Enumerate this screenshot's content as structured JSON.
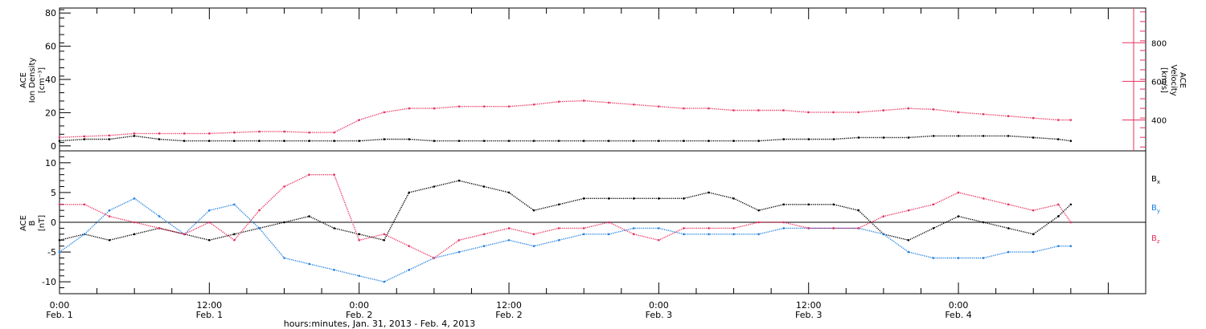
{
  "chart_data": [
    {
      "type": "scatter",
      "panel": "top",
      "ylabel_left": [
        "ACE",
        "Ion Density",
        "[cm⁻³]"
      ],
      "ylabel_right": [
        "ACE",
        "Velocity",
        "[km/s]"
      ],
      "ylim_left": [
        -3,
        83
      ],
      "ylim_right": [
        240,
        980
      ],
      "yticks_left": [
        0,
        20,
        40,
        60,
        80
      ],
      "yticks_right": [
        400,
        600,
        800
      ],
      "series": [
        {
          "name": "Ion Density",
          "color": "#000000",
          "x": [
            0,
            2,
            4,
            6,
            8,
            10,
            12,
            14,
            16,
            18,
            20,
            22,
            24,
            26,
            28,
            30,
            32,
            34,
            36,
            38,
            40,
            42,
            44,
            46,
            48,
            50,
            52,
            54,
            56,
            58,
            60,
            62,
            64,
            66,
            68,
            70,
            72,
            74,
            76,
            78,
            80,
            81
          ],
          "y": [
            3,
            4,
            4,
            6,
            4,
            3,
            3,
            3,
            3,
            3,
            3,
            3,
            3,
            4,
            4,
            3,
            3,
            3,
            3,
            3,
            3,
            3,
            3,
            3,
            3,
            3,
            3,
            3,
            3,
            4,
            4,
            4,
            5,
            5,
            5,
            6,
            6,
            6,
            6,
            5,
            4,
            3
          ]
        },
        {
          "name": "Velocity",
          "color": "#e8305f",
          "x": [
            0,
            2,
            4,
            6,
            8,
            10,
            12,
            14,
            16,
            18,
            20,
            22,
            24,
            26,
            28,
            30,
            32,
            34,
            36,
            38,
            40,
            42,
            44,
            46,
            48,
            50,
            52,
            54,
            56,
            58,
            60,
            62,
            64,
            66,
            68,
            70,
            72,
            74,
            76,
            78,
            80,
            81
          ],
          "y": [
            310,
            315,
            320,
            330,
            330,
            330,
            330,
            335,
            340,
            340,
            335,
            335,
            400,
            440,
            460,
            460,
            470,
            470,
            470,
            480,
            495,
            500,
            490,
            480,
            470,
            460,
            460,
            450,
            450,
            450,
            440,
            440,
            440,
            450,
            460,
            455,
            440,
            430,
            420,
            410,
            400,
            400
          ]
        }
      ]
    },
    {
      "type": "scatter",
      "panel": "bottom",
      "ylabel_left": [
        "ACE",
        "B",
        "[nT]"
      ],
      "ylim": [
        -12,
        12
      ],
      "yticks": [
        -10,
        -5,
        0,
        5,
        10
      ],
      "legend": [
        "Bₓ",
        "By",
        "B_z"
      ],
      "legend_placement": "right",
      "series": [
        {
          "name": "Bx",
          "color": "#000000",
          "x": [
            0,
            2,
            4,
            6,
            8,
            10,
            12,
            14,
            16,
            18,
            20,
            22,
            24,
            26,
            28,
            30,
            32,
            34,
            36,
            38,
            40,
            42,
            44,
            46,
            48,
            50,
            52,
            54,
            56,
            58,
            60,
            62,
            64,
            66,
            68,
            70,
            72,
            74,
            76,
            78,
            80,
            81
          ],
          "y": [
            -3,
            -2,
            -3,
            -2,
            -1,
            -2,
            -3,
            -2,
            -1,
            0,
            1,
            -1,
            -2,
            -3,
            5,
            6,
            7,
            6,
            5,
            2,
            3,
            4,
            4,
            4,
            4,
            4,
            5,
            4,
            2,
            3,
            3,
            3,
            2,
            -2,
            -3,
            -1,
            1,
            0,
            -1,
            -2,
            1,
            3
          ]
        },
        {
          "name": "By",
          "color": "#1e7fe0",
          "x": [
            0,
            2,
            4,
            6,
            8,
            10,
            12,
            14,
            16,
            18,
            20,
            22,
            24,
            26,
            28,
            30,
            32,
            34,
            36,
            38,
            40,
            42,
            44,
            46,
            48,
            50,
            52,
            54,
            56,
            58,
            60,
            62,
            64,
            66,
            68,
            70,
            72,
            74,
            76,
            78,
            80,
            81
          ],
          "y": [
            -5,
            -2,
            2,
            4,
            1,
            -2,
            2,
            3,
            -1,
            -6,
            -7,
            -8,
            -9,
            -10,
            -8,
            -6,
            -5,
            -4,
            -3,
            -4,
            -3,
            -2,
            -2,
            -1,
            -1,
            -2,
            -2,
            -2,
            -2,
            -1,
            -1,
            -1,
            -1,
            -2,
            -5,
            -6,
            -6,
            -6,
            -5,
            -5,
            -4,
            -4
          ]
        },
        {
          "name": "Bz",
          "color": "#e8305f",
          "x": [
            0,
            2,
            4,
            6,
            8,
            10,
            12,
            14,
            16,
            18,
            20,
            22,
            24,
            26,
            28,
            30,
            32,
            34,
            36,
            38,
            40,
            42,
            44,
            46,
            48,
            50,
            52,
            54,
            56,
            58,
            60,
            62,
            64,
            66,
            68,
            70,
            72,
            74,
            76,
            78,
            80,
            81
          ],
          "y": [
            3,
            3,
            1,
            0,
            -1,
            -2,
            0,
            -3,
            2,
            6,
            8,
            8,
            -3,
            -2,
            -4,
            -6,
            -3,
            -2,
            -1,
            -2,
            -1,
            -1,
            0,
            -2,
            -3,
            -1,
            -1,
            -1,
            0,
            0,
            -1,
            -1,
            -1,
            1,
            2,
            3,
            5,
            4,
            3,
            2,
            3,
            0
          ]
        }
      ]
    }
  ],
  "xaxis": {
    "title": "hours:minutes, Jan. 31, 2013 - Feb. 4, 2013",
    "xlim": [
      0,
      87
    ],
    "major_ticks": [
      {
        "x": 0,
        "time": "0:00",
        "date": "Feb. 1"
      },
      {
        "x": 12,
        "time": "12:00",
        "date": "Feb. 1"
      },
      {
        "x": 24,
        "time": "0:00",
        "date": "Feb. 2"
      },
      {
        "x": 36,
        "time": "12:00",
        "date": "Feb. 2"
      },
      {
        "x": 48,
        "time": "0:00",
        "date": "Feb. 3"
      },
      {
        "x": 60,
        "time": "12:00",
        "date": "Feb. 3"
      },
      {
        "x": 72,
        "time": "0:00",
        "date": "Feb. 4"
      }
    ]
  },
  "legend_labels": {
    "bx_main": "B",
    "bx_sub": "x",
    "by_main": "B",
    "by_sub": "y",
    "bz_main": "B",
    "bz_sub": "z"
  },
  "labels": {
    "top_left_1": "ACE",
    "top_left_2": "Ion Density",
    "top_left_3": "[cm⁻³]",
    "top_right_1": "ACE",
    "top_right_2": "Velocity",
    "top_right_3": "[km/s]",
    "bottom_left_1": "ACE",
    "bottom_left_2": "B",
    "bottom_left_3": "[nT]"
  }
}
